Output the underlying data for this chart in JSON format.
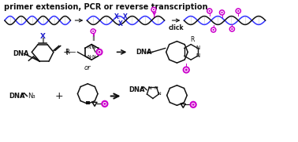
{
  "title_text": "primer extension, PCR or reverse transcription",
  "click_text": "click",
  "or_text": "or",
  "bg_color": "#ffffff",
  "blue_color": "#2222cc",
  "magenta_color": "#cc00cc",
  "black_color": "#111111",
  "dna_blue": "#3333ff",
  "dna_gray": "#777777",
  "dna_black": "#111111",
  "title_fontsize": 7.0,
  "label_fontsize": 6.0,
  "small_fontsize": 5.0,
  "figsize": [
    3.78,
    1.81
  ],
  "dpi": 100
}
